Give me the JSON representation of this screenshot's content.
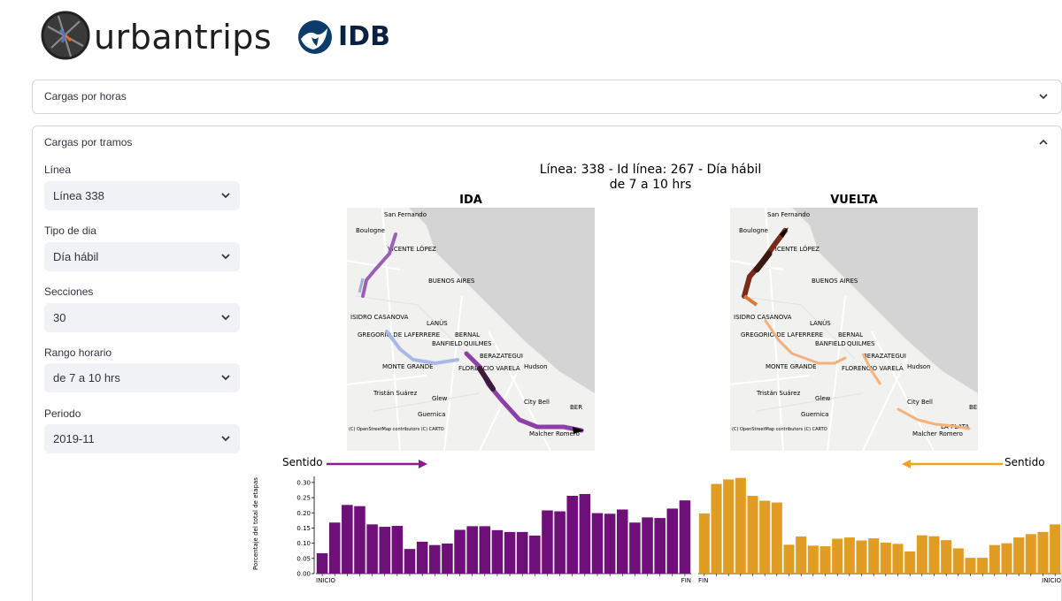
{
  "header": {
    "brand": "urbantrips",
    "partner": "IDB"
  },
  "expanders": [
    {
      "title": "Cargas por horas",
      "expanded": false
    },
    {
      "title": "Cargas por tramos",
      "expanded": true
    }
  ],
  "filters": [
    {
      "label": "Línea",
      "value": "Línea 338"
    },
    {
      "label": "Tipo de dia",
      "value": "Día hábil"
    },
    {
      "label": "Secciones",
      "value": "30"
    },
    {
      "label": "Rango horario",
      "value": "de 7 a 10 hrs"
    },
    {
      "label": "Periodo",
      "value": "2019-11"
    }
  ],
  "figure": {
    "title_line1": "Línea: 338 - Id línea: 267 - Día hábil",
    "title_line2": "de 7 a 10 hrs",
    "map_ida_title": "IDA",
    "map_vuelta_title": "VUELTA",
    "map_attribution": "(C) OpenStreetMap contributors (C) CARTO",
    "map_labels": [
      "San Fernando",
      "Boulogne",
      "VICENTE LÓPEZ",
      "BUENOS AIRES",
      "ISIDRO CASANOVA",
      "LANÚS",
      "GREGORIO DE LAFERRERE",
      "BANFIELD",
      "BERNAL",
      "QUILMES",
      "BERAZATEGUI",
      "MONTE GRANDE",
      "FLORENCIO VARELA",
      "Hudson",
      "Tristán Suárez",
      "Glew",
      "City Bell",
      "Guernica",
      "Malcher Romero",
      "LA PLATA",
      "BER"
    ],
    "sentido_label": "Sentido",
    "ylabel": "Porcentaje del total de etapas"
  },
  "colors": {
    "ida": "#6e0f7a",
    "vuelta": "#e19d23",
    "arrow_ida": "#8b1a8f",
    "arrow_vuelta": "#f0a21a"
  },
  "chart_data": [
    {
      "type": "bar",
      "name": "IDA",
      "ylabel": "Porcentaje del total de etapas",
      "ylim": [
        0,
        0.32
      ],
      "yticks": [
        "0.00",
        "0.05",
        "0.10",
        "0.15",
        "0.20",
        "0.25",
        "0.30"
      ],
      "x_start_label": "INICIO",
      "x_end_label": "FIN",
      "values": [
        0.067,
        0.168,
        0.226,
        0.222,
        0.162,
        0.154,
        0.157,
        0.081,
        0.105,
        0.094,
        0.099,
        0.144,
        0.156,
        0.156,
        0.143,
        0.137,
        0.137,
        0.125,
        0.208,
        0.205,
        0.256,
        0.262,
        0.199,
        0.197,
        0.211,
        0.168,
        0.185,
        0.183,
        0.214,
        0.241
      ]
    },
    {
      "type": "bar",
      "name": "VUELTA",
      "ylim": [
        0,
        0.32
      ],
      "x_start_label": "FIN",
      "x_end_label": "INICIO",
      "values": [
        0.198,
        0.295,
        0.31,
        0.315,
        0.256,
        0.24,
        0.234,
        0.095,
        0.122,
        0.092,
        0.09,
        0.115,
        0.119,
        0.109,
        0.116,
        0.102,
        0.098,
        0.073,
        0.126,
        0.123,
        0.11,
        0.083,
        0.052,
        0.052,
        0.094,
        0.1,
        0.119,
        0.13,
        0.137,
        0.162
      ]
    }
  ]
}
